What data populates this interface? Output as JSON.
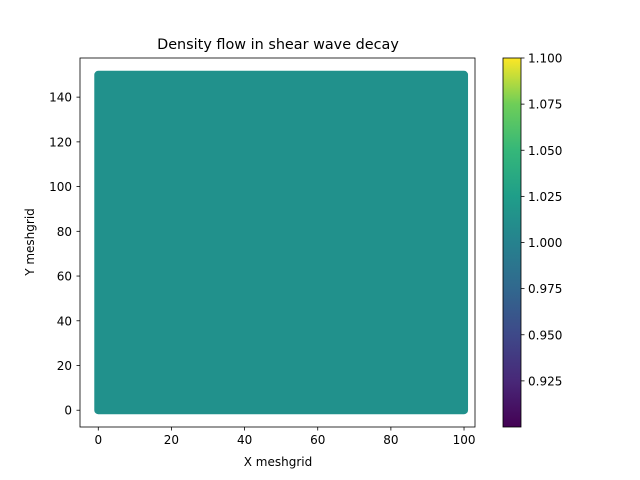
{
  "chart_data": {
    "type": "scatter",
    "title": "Density flow in shear wave decay",
    "xlabel": "X meshgrid",
    "ylabel": "Y meshgrid",
    "xlim": [
      -5,
      103
    ],
    "ylim": [
      -7.5,
      157.5
    ],
    "x_ticks": [
      0,
      20,
      40,
      60,
      80,
      100
    ],
    "x_tick_labels": [
      "0",
      "20",
      "40",
      "60",
      "80",
      "100"
    ],
    "y_ticks": [
      0,
      20,
      40,
      60,
      80,
      100,
      120,
      140
    ],
    "y_tick_labels": [
      "0",
      "20",
      "40",
      "60",
      "80",
      "100",
      "120",
      "140"
    ],
    "grid": false,
    "series": [
      {
        "x_range": [
          0,
          100
        ],
        "y_range": [
          0,
          150
        ],
        "value": 1.0,
        "color": "#21918c"
      }
    ],
    "colorbar": {
      "colormap": "viridis",
      "vmin": 0.9,
      "vmax": 1.1,
      "ticks": [
        0.925,
        0.95,
        0.975,
        1.0,
        1.025,
        1.05,
        1.075,
        1.1
      ],
      "tick_labels": [
        "0.925",
        "0.950",
        "0.975",
        "1.000",
        "1.025",
        "1.050",
        "1.075",
        "1.100"
      ]
    }
  }
}
